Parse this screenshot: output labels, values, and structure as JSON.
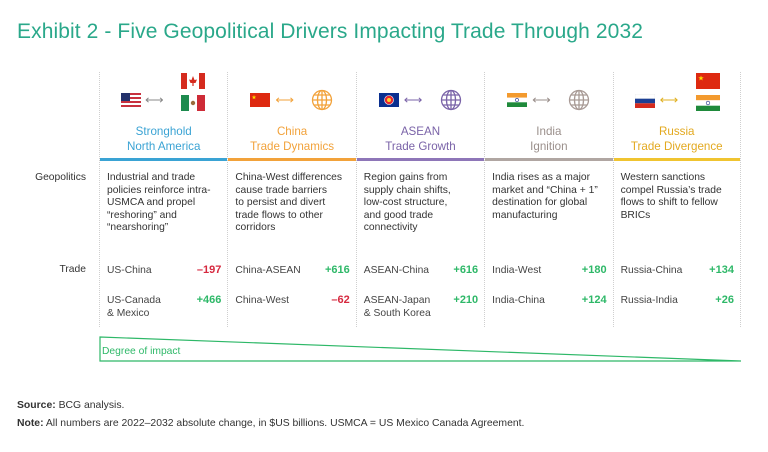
{
  "title": "Exhibit 2 - Five Geopolitical Drivers Impacting Trade Through 2032",
  "row_labels": {
    "geopolitics": "Geopolitics",
    "trade": "Trade"
  },
  "arrow_glyph": "⟷",
  "columns": [
    {
      "head_line1": "Stronghold",
      "head_line2": "North America",
      "color": "#3aa3d4",
      "icons": [
        "us-flag",
        "canada-flag",
        "mexico-flag"
      ],
      "geopolitics": [
        "Industrial and trade",
        "policies reinforce intra-",
        "USMCA and propel",
        "“reshoring” and",
        "“nearshoring”"
      ],
      "trades": [
        {
          "pair_1": "US-China",
          "pair_2": "",
          "value": "–197",
          "sign": "neg"
        },
        {
          "pair_1": "US-Canada",
          "pair_2": "& Mexico",
          "value": "+466",
          "sign": "pos"
        }
      ]
    },
    {
      "head_line1": "China",
      "head_line2": "Trade Dynamics",
      "color": "#f2a23a",
      "icons": [
        "china-flag",
        "globe"
      ],
      "geopolitics": [
        "China-West differences",
        "cause trade barriers",
        "to persist and divert",
        "trade flows to other",
        "corridors"
      ],
      "trades": [
        {
          "pair_1": "China-ASEAN",
          "pair_2": "",
          "value": "+616",
          "sign": "pos"
        },
        {
          "pair_1": "China-West",
          "pair_2": "",
          "value": "–62",
          "sign": "neg"
        }
      ]
    },
    {
      "head_line1": "ASEAN",
      "head_line2": "Trade Growth",
      "color": "#8e76b8",
      "icons": [
        "asean-flag",
        "globe"
      ],
      "geopolitics": [
        "Region gains from",
        "supply chain shifts,",
        "low-cost structure,",
        "and good trade",
        "connectivity"
      ],
      "trades": [
        {
          "pair_1": "ASEAN-China",
          "pair_2": "",
          "value": "+616",
          "sign": "pos"
        },
        {
          "pair_1": "ASEAN-Japan",
          "pair_2": "& South Korea",
          "value": "+210",
          "sign": "pos"
        }
      ]
    },
    {
      "head_line1": "India",
      "head_line2": "Ignition",
      "color": "#b0a6a2",
      "icons": [
        "india-flag",
        "globe"
      ],
      "geopolitics": [
        "India rises as a major",
        "market and “China + 1”",
        "destination for global",
        "manufacturing"
      ],
      "trades": [
        {
          "pair_1": "India-West",
          "pair_2": "",
          "value": "+180",
          "sign": "pos"
        },
        {
          "pair_1": "India-China",
          "pair_2": "",
          "value": "+124",
          "sign": "pos"
        }
      ]
    },
    {
      "head_line1": "Russia",
      "head_line2": "Trade Divergence",
      "color": "#f0c430",
      "icons": [
        "russia-flag",
        "china-flag",
        "india-flag"
      ],
      "geopolitics": [
        "Western sanctions",
        "compel Russia’s trade",
        "flows to shift to fellow",
        "BRICs"
      ],
      "trades": [
        {
          "pair_1": "Russia-China",
          "pair_2": "",
          "value": "+134",
          "sign": "pos"
        },
        {
          "pair_1": "Russia-India",
          "pair_2": "",
          "value": "+26",
          "sign": "pos"
        }
      ]
    }
  ],
  "impact_label": "Degree of impact",
  "footer": {
    "source_label": "Source:",
    "source_text": " BCG analysis.",
    "note_label": "Note:",
    "note_text": " All numbers are 2022–2032 absolute change, in $US billions. USMCA = US Mexico Canada Agreement."
  }
}
